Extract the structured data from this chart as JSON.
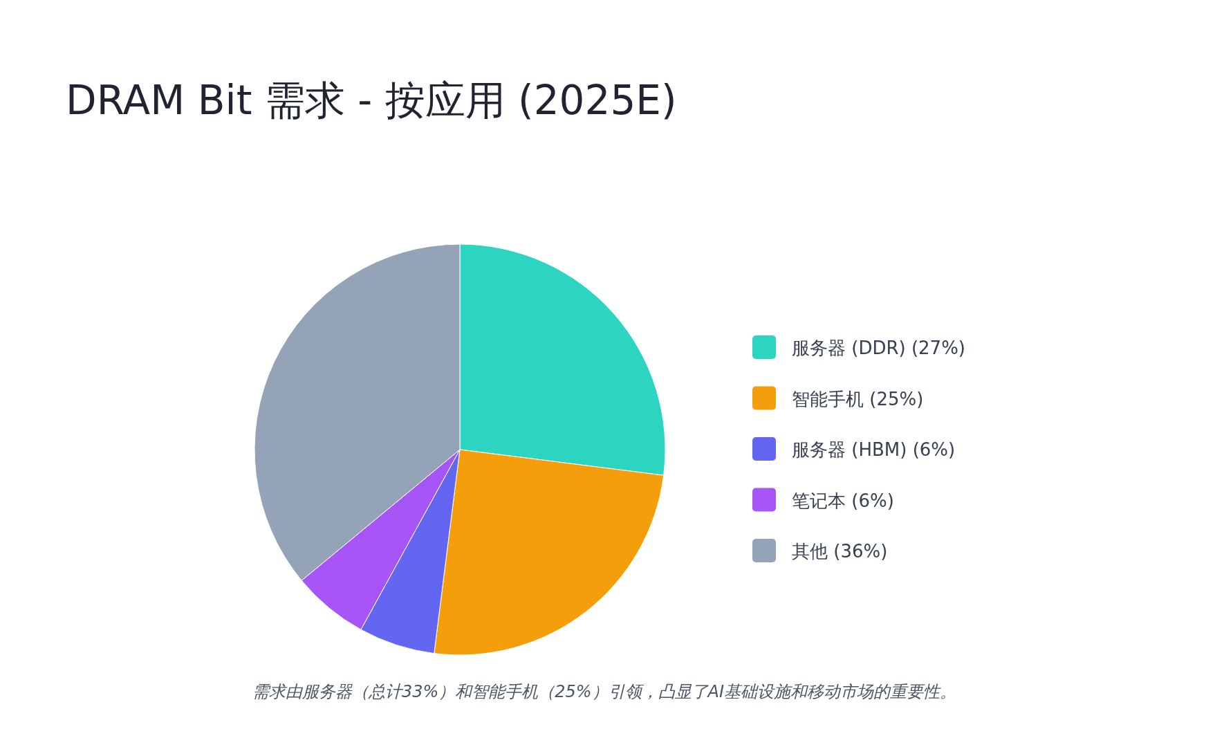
{
  "chart_data": {
    "type": "pie",
    "title": "DRAM Bit 需求 - 按应用 (2025E)",
    "categories": [
      "服务器 (DDR) (27%)",
      "智能手机 (25%)",
      "服务器 (HBM) (6%)",
      "笔记本 (6%)",
      "其他 (36%)"
    ],
    "values": [
      27,
      25,
      6,
      6,
      36
    ],
    "colors": [
      "#2dd4bf",
      "#f59e0b",
      "#6366f1",
      "#a855f7",
      "#94a3b8"
    ],
    "legend": "right",
    "annotations": [
      "需求由服务器（总计33%）和智能手机（25%）引领，凸显了AI基础设施和移动市场的重要性。"
    ]
  }
}
